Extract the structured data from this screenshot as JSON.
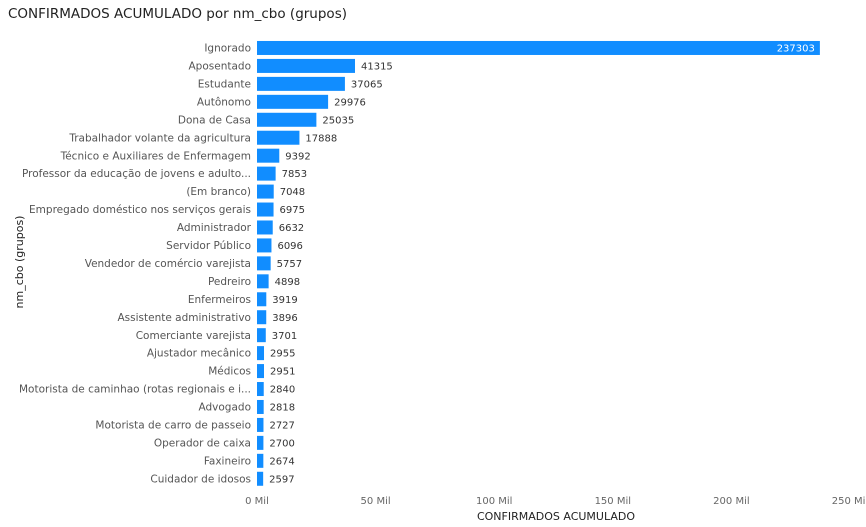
{
  "chart_data": {
    "type": "bar",
    "orientation": "horizontal",
    "title": "CONFIRMADOS ACUMULADO por nm_cbo (grupos)",
    "xlabel": "CONFIRMADOS ACUMULADO",
    "ylabel": "nm_cbo (grupos)",
    "xlim": [
      0,
      250000
    ],
    "xticks": [
      "0 Mil",
      "50 Mil",
      "100 Mil",
      "150 Mil",
      "200 Mil",
      "250 Mil"
    ],
    "bar_color": "#118DFF",
    "categories": [
      "Ignorado",
      "Aposentado",
      "Estudante",
      "Autônomo",
      "Dona de Casa",
      "Trabalhador volante da agricultura",
      "Técnico e Auxiliares de Enfermagem",
      "Professor da educação de jovens e adulto...",
      "(Em branco)",
      "Empregado doméstico nos serviços gerais",
      "Administrador",
      "Servidor Público",
      "Vendedor de comércio varejista",
      "Pedreiro",
      "Enfermeiros",
      "Assistente administrativo",
      "Comerciante varejista",
      "Ajustador mecânico",
      "Médicos",
      "Motorista de caminhao (rotas regionais e i...",
      "Advogado",
      "Motorista de carro de passeio",
      "Operador de caixa",
      "Faxineiro",
      "Cuidador de idosos"
    ],
    "values": [
      237303,
      41315,
      37065,
      29976,
      25035,
      17888,
      9392,
      7853,
      7048,
      6975,
      6632,
      6096,
      5757,
      4898,
      3919,
      3896,
      3701,
      2955,
      2951,
      2840,
      2818,
      2727,
      2700,
      2674,
      2597
    ],
    "value_labels": [
      "237303",
      "41315",
      "37065",
      "29976",
      "25035",
      "17888",
      "9392",
      "7853",
      "7048",
      "6975",
      "6632",
      "6096",
      "5757",
      "4898",
      "3919",
      "3896",
      "3701",
      "2955",
      "2951",
      "2840",
      "2818",
      "2727",
      "2700",
      "2674",
      "2597"
    ]
  }
}
